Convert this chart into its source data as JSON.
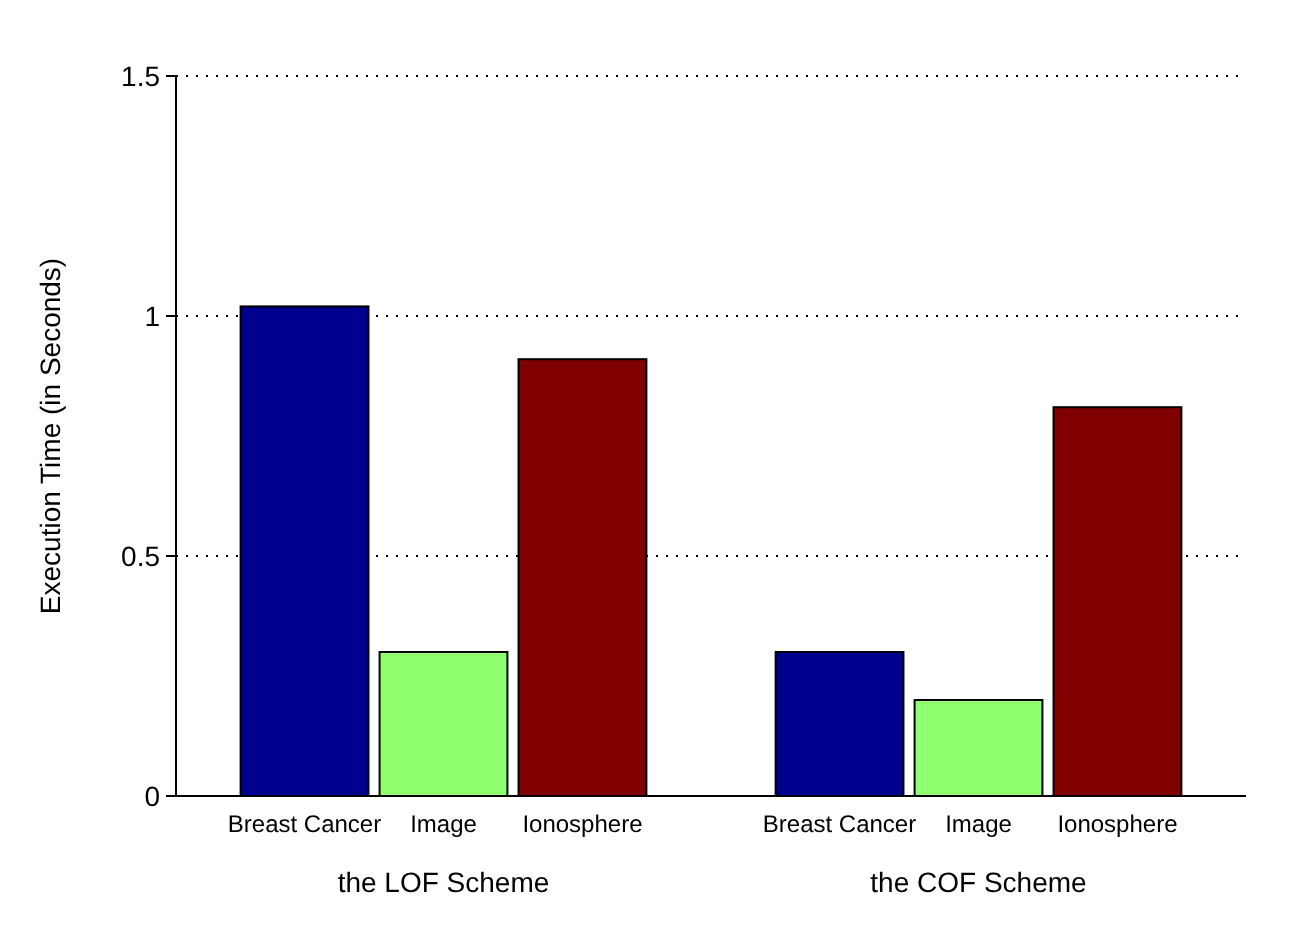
{
  "chart_data": {
    "type": "bar",
    "ylabel": "Execution Time (in Seconds)",
    "categories": [
      "the LOF Scheme",
      "the COF Scheme"
    ],
    "series": [
      {
        "name": "Breast Cancer",
        "color": "#00008f",
        "values": [
          1.02,
          0.3
        ]
      },
      {
        "name": "Image",
        "color": "#8fff6f",
        "values": [
          0.3,
          0.2
        ]
      },
      {
        "name": "Ionosphere",
        "color": "#800000",
        "values": [
          0.91,
          0.81
        ]
      }
    ],
    "ylim": [
      0,
      1.5
    ],
    "yticks": [
      0,
      0.5,
      1,
      1.5
    ],
    "grid": "y"
  }
}
